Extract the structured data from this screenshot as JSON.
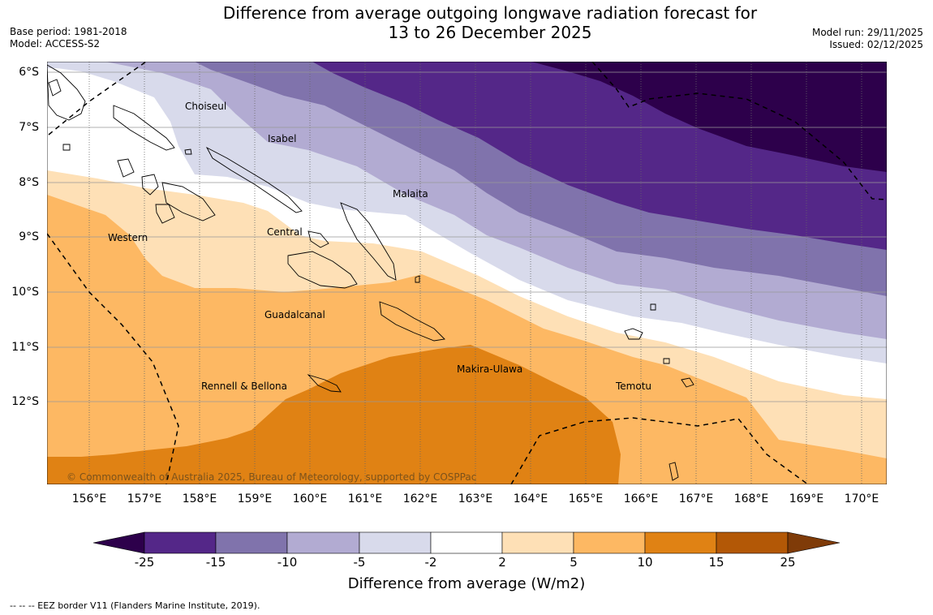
{
  "header": {
    "title_line1": "Difference from average outgoing longwave radiation forecast for",
    "title_line2": "13 to 26 December 2025",
    "base_period": "Base period: 1981-2018",
    "model": "Model: ACCESS-S2",
    "model_run": "Model run: 29/11/2025",
    "issued": "Issued: 02/12/2025"
  },
  "map": {
    "lat_labels": [
      "6°S",
      "7°S",
      "8°S",
      "9°S",
      "10°S",
      "11°S",
      "12°S"
    ],
    "lon_labels": [
      "156°E",
      "157°E",
      "158°E",
      "159°E",
      "160°E",
      "161°E",
      "162°E",
      "163°E",
      "164°E",
      "165°E",
      "166°E",
      "167°E",
      "168°E",
      "169°E",
      "170°E"
    ],
    "places": {
      "choiseul": "Choiseul",
      "isabel": "Isabel",
      "malaita": "Malaita",
      "central": "Central",
      "western": "Western",
      "guadalcanal": "Guadalcanal",
      "makira": "Makira-Ulawa",
      "rennell": "Rennell & Bellona",
      "temotu": "Temotu"
    },
    "copyright": "© Commonwealth of Australia 2025, Bureau of Meteorology, supported by COSPPac"
  },
  "colorbar": {
    "ticks": [
      "-25",
      "-15",
      "-10",
      "-5",
      "-2",
      "2",
      "5",
      "10",
      "15",
      "25"
    ],
    "colors": {
      "lt_neg25": "#2d004b",
      "neg25_neg15": "#542788",
      "neg15_neg10": "#8073ac",
      "neg10_neg5": "#b2abd2",
      "neg5_neg2": "#d8daeb",
      "neg2_2": "#ffffff",
      "p2_5": "#fee0b6",
      "p5_10": "#fdb863",
      "p10_15": "#e08214",
      "p15_25": "#b35806",
      "gt_25": "#7f3b08"
    },
    "label": "Difference from average (W/m2)"
  },
  "footer": {
    "eez_note": "--  --  -- EEZ border V11 (Flanders Marine Institute, 2019)."
  }
}
